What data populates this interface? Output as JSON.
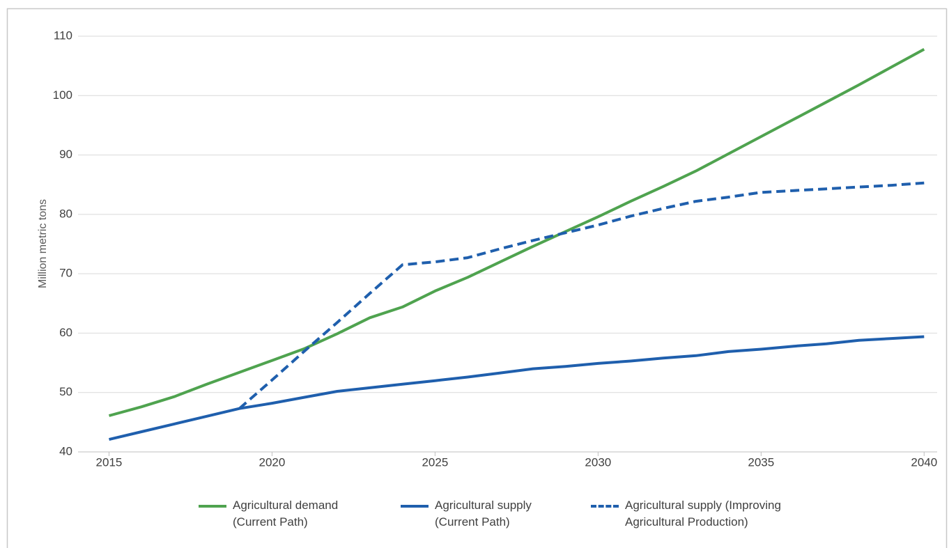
{
  "chart_data": {
    "type": "line",
    "y_label": "Million metric tons",
    "x": [
      2015,
      2016,
      2017,
      2018,
      2019,
      2020,
      2021,
      2022,
      2023,
      2024,
      2025,
      2026,
      2027,
      2028,
      2029,
      2030,
      2031,
      2032,
      2033,
      2034,
      2035,
      2036,
      2037,
      2038,
      2039,
      2040
    ],
    "series": [
      {
        "name": "Agricultural demand (Current Path)",
        "color": "#4fa34f",
        "dash": false,
        "values": [
          46.1,
          47.6,
          49.3,
          51.4,
          53.4,
          55.4,
          57.4,
          59.9,
          62.6,
          64.4,
          67.1,
          69.4,
          72.0,
          74.6,
          77.1,
          79.6,
          82.2,
          84.7,
          87.3,
          90.2,
          93.1,
          96.0,
          98.9,
          101.8,
          104.8,
          107.8
        ]
      },
      {
        "name": "Agricultural supply (Current Path)",
        "color": "#1f5fad",
        "dash": false,
        "values": [
          42.1,
          43.4,
          44.7,
          46.0,
          47.3,
          48.2,
          49.2,
          50.2,
          50.8,
          51.4,
          52.0,
          52.6,
          53.3,
          54.0,
          54.4,
          54.9,
          55.3,
          55.8,
          56.2,
          56.9,
          57.3,
          57.8,
          58.2,
          58.8,
          59.1,
          59.4
        ]
      },
      {
        "name": "Agricultural supply (Improving Agricultural Production)",
        "color": "#1f5fad",
        "dash": true,
        "values": [
          null,
          null,
          null,
          null,
          47.3,
          52.1,
          57.0,
          61.8,
          66.7,
          71.5,
          72.0,
          72.7,
          74.2,
          75.6,
          76.9,
          78.2,
          79.7,
          81.0,
          82.2,
          82.9,
          83.7,
          84.0,
          84.3,
          84.6,
          84.9,
          85.3
        ]
      }
    ],
    "xlim": [
      2014.05,
      2040.4
    ],
    "xticks": [
      2015,
      2020,
      2025,
      2030,
      2035,
      2040
    ],
    "ylim": [
      40,
      110
    ],
    "yticks": [
      40,
      50,
      60,
      70,
      80,
      90,
      100,
      110
    ],
    "grid": true,
    "legend": "bottom"
  }
}
